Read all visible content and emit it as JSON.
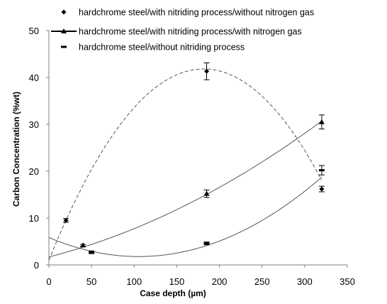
{
  "chart_data": {
    "type": "scatter",
    "title": "",
    "xlabel": "Case depth (µm)",
    "ylabel": "Carbon Concentration (%wt)",
    "xlim": [
      0,
      350
    ],
    "ylim": [
      0,
      50
    ],
    "x_ticks": [
      "0",
      "50",
      "100",
      "150",
      "200",
      "250",
      "300",
      "350"
    ],
    "y_ticks": [
      "0",
      "10",
      "20",
      "30",
      "40",
      "50"
    ],
    "grid": false,
    "legend_placement": "top",
    "series": [
      {
        "name": "hardchrome steel/with nitriding process/without nitrogen gas",
        "marker": "diamond",
        "line": "dashed",
        "points": [
          {
            "x": 20,
            "y": 9.5,
            "err": 0.4
          },
          {
            "x": 185,
            "y": 41.3,
            "err": 1.8
          },
          {
            "x": 320,
            "y": 16.2,
            "err": 0.6
          }
        ],
        "trend": [
          1.0,
          0.4495,
          -0.001238
        ]
      },
      {
        "name": "hardchrome steel/with nitriding process/with nitrogen gas",
        "marker": "triangle",
        "line": "solid",
        "points": [
          {
            "x": 40,
            "y": 4.2,
            "err": 0.2
          },
          {
            "x": 185,
            "y": 15.2,
            "err": 0.8
          },
          {
            "x": 320,
            "y": 30.5,
            "err": 1.5
          }
        ],
        "trend": [
          1.7,
          0.0468,
          0.000137
        ]
      },
      {
        "name": "hardchrome steel/without nitriding process",
        "marker": "dash",
        "line": "solid",
        "points": [
          {
            "x": 50,
            "y": 2.7,
            "err": 0.3
          },
          {
            "x": 185,
            "y": 4.6,
            "err": 0.3
          },
          {
            "x": 320,
            "y": 20.2,
            "err": 1.0
          }
        ],
        "trend": [
          5.85,
          -0.0772,
          0.000367
        ]
      }
    ]
  }
}
